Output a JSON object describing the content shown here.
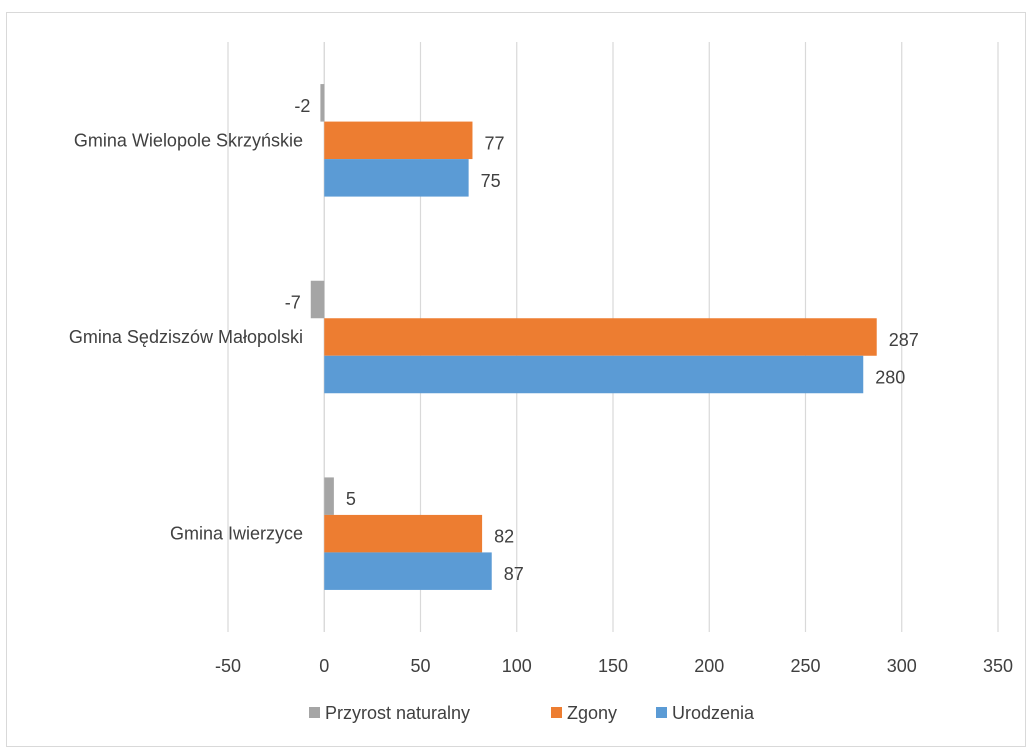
{
  "chart_data": {
    "type": "bar",
    "orientation": "horizontal",
    "title": "",
    "xlabel": "",
    "ylabel": "",
    "categories": [
      "Gmina Wielopole Skrzyńskie",
      "Gmina Sędziszów Małopolski",
      "Gmina Iwierzyce"
    ],
    "series": [
      {
        "name": "Przyrost naturalny",
        "color": "#a5a5a5",
        "values": [
          -2,
          -7,
          5
        ]
      },
      {
        "name": "Zgony",
        "color": "#ed7d31",
        "values": [
          77,
          287,
          82
        ]
      },
      {
        "name": "Urodzenia",
        "color": "#5b9bd5",
        "values": [
          75,
          280,
          87
        ]
      }
    ],
    "xlim": [
      -50,
      350
    ],
    "xticks": [
      -50,
      0,
      50,
      100,
      150,
      200,
      250,
      300,
      350
    ],
    "grid": true,
    "legend": "bottom",
    "data_labels": true
  }
}
